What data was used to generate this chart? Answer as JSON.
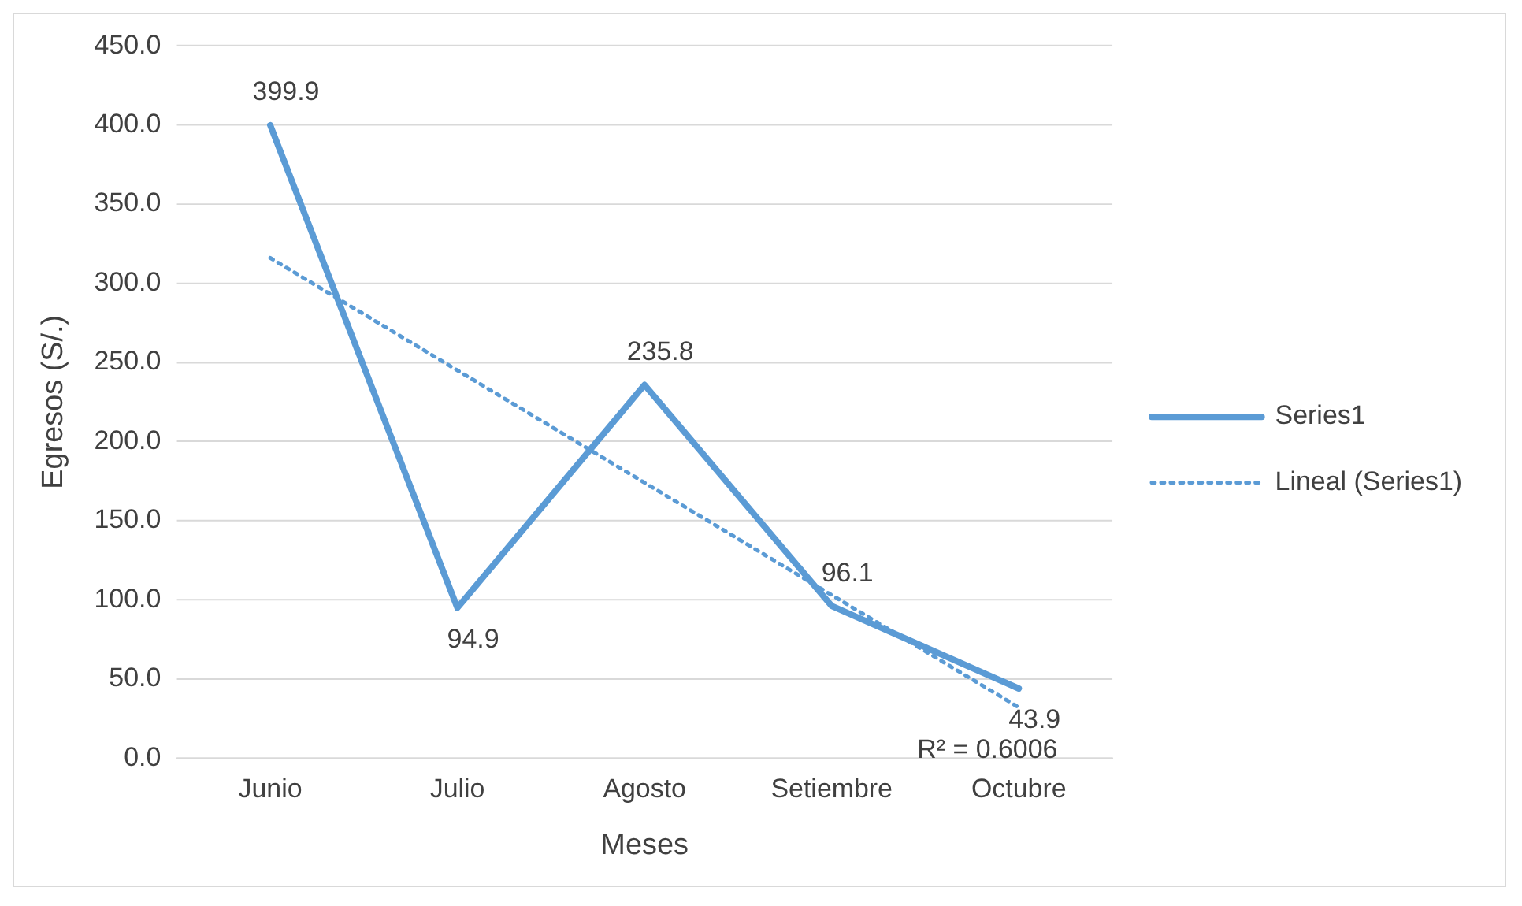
{
  "chart_data": {
    "type": "line",
    "xlabel": "Meses",
    "ylabel": "Egresos (S/.)",
    "categories": [
      "Junio",
      "Julio",
      "Agosto",
      "Setiembre",
      "Octubre"
    ],
    "series": [
      {
        "name": "Series1",
        "color": "#5b9bd5",
        "values": [
          399.9,
          94.9,
          235.8,
          96.1,
          43.9
        ],
        "data_labels": true
      },
      {
        "name": "Lineal (Series1)",
        "type": "line",
        "color": "#5b9bd5",
        "line_style": "dotted",
        "values": [
          316,
          245,
          174,
          103,
          32
        ]
      }
    ],
    "ylim": [
      0,
      450
    ],
    "yticks": [
      {
        "value": 0,
        "label": "0.0"
      },
      {
        "value": 50,
        "label": "50.0"
      },
      {
        "value": 100,
        "label": "100.0"
      },
      {
        "value": 150,
        "label": "150.0"
      },
      {
        "value": 200,
        "label": "200.0"
      },
      {
        "value": 250,
        "label": "250.0"
      },
      {
        "value": 300,
        "label": "300.0"
      },
      {
        "value": 350,
        "label": "350.0"
      },
      {
        "value": 400,
        "label": "400.0"
      },
      {
        "value": 450,
        "label": "450.0"
      }
    ],
    "grid": "y",
    "legend": "right",
    "marker": "none",
    "annotations": [
      "R² = 0.6006"
    ]
  }
}
